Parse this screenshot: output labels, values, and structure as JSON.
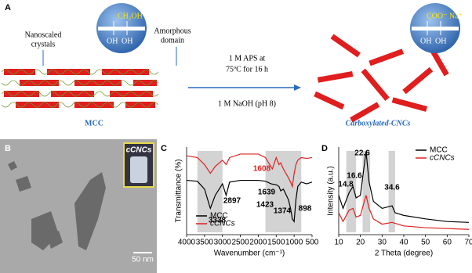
{
  "panel_a": {
    "label": "A",
    "left_circle": {
      "top": "CH₂OH",
      "bottom_left": "OH",
      "bottom_right": "OH"
    },
    "crystal_label": [
      "Nanoscaled",
      "crystals"
    ],
    "amorphous_label": [
      "Amorphous",
      "domain"
    ],
    "condition_top": [
      "1 M APS at",
      "75ºC for 16 h"
    ],
    "condition_bottom": "1 M NaOH (pH 8)",
    "left_name": "MCC",
    "right_circle": {
      "top": "COO⁻ Na⁺",
      "bottom_left": "OH",
      "bottom_right": "OH"
    },
    "right_name": "Carboxylated-CNCs"
  },
  "panel_b": {
    "label": "B",
    "inset_label": "cCNCs",
    "scale_bar": "50 nm"
  },
  "chart_data": [
    {
      "type": "line",
      "label": "C",
      "xlabel": "Wavenumber (cm⁻¹)",
      "ylabel": "Transmittance (%)",
      "xlim": [
        4000,
        500
      ],
      "xticks": [
        4000,
        3500,
        3000,
        2500,
        2000,
        1500,
        1000,
        500
      ],
      "ylim": [
        0,
        100
      ],
      "highlight_ranges": [
        [
          3700,
          3000
        ],
        [
          1800,
          800
        ]
      ],
      "annotations": [
        "3338",
        "2897",
        "1608",
        "1639",
        "1423",
        "1374",
        "898"
      ],
      "series": [
        {
          "name": "MCC",
          "color": "#000000",
          "x": [
            4000,
            3700,
            3500,
            3338,
            3200,
            3000,
            2897,
            2800,
            2500,
            2000,
            1800,
            1639,
            1500,
            1423,
            1374,
            1300,
            1160,
            1100,
            1050,
            1000,
            950,
            898,
            800,
            650,
            500
          ],
          "values": [
            62,
            61,
            52,
            30,
            45,
            58,
            45,
            60,
            62,
            62,
            61,
            58,
            57,
            55,
            50,
            52,
            40,
            30,
            18,
            15,
            40,
            55,
            60,
            58,
            60
          ]
        },
        {
          "name": "cCNCs",
          "color": "#e02020",
          "x": [
            4000,
            3700,
            3500,
            3338,
            3200,
            3000,
            2897,
            2800,
            2500,
            2000,
            1800,
            1608,
            1500,
            1423,
            1374,
            1300,
            1160,
            1100,
            1050,
            1000,
            950,
            898,
            800,
            650,
            500
          ],
          "values": [
            90,
            88,
            80,
            70,
            78,
            85,
            80,
            88,
            92,
            92,
            88,
            75,
            88,
            80,
            82,
            75,
            65,
            60,
            55,
            70,
            80,
            85,
            88,
            87,
            88
          ]
        }
      ]
    },
    {
      "type": "line",
      "label": "D",
      "xlabel": "2 Theta (degree)",
      "ylabel": "Intensity (a.u.)",
      "xlim": [
        10,
        70
      ],
      "xticks": [
        10,
        20,
        30,
        40,
        50,
        60,
        70
      ],
      "ylim": [
        0,
        100
      ],
      "highlight_ranges": [
        [
          13.5,
          18
        ],
        [
          21,
          24.5
        ],
        [
          33,
          36
        ]
      ],
      "annotations": [
        "14.8",
        "16.6",
        "22.6",
        "34.6"
      ],
      "series": [
        {
          "name": "MCC",
          "color": "#000000",
          "x": [
            10,
            12,
            14.8,
            16.6,
            18,
            20,
            22.6,
            24,
            26,
            30,
            34.6,
            36,
            40,
            50,
            60,
            70
          ],
          "values": [
            45,
            30,
            48,
            55,
            42,
            45,
            95,
            60,
            38,
            30,
            33,
            25,
            22,
            18,
            15,
            14
          ]
        },
        {
          "name": "cCNCs",
          "color": "#e02020",
          "x": [
            10,
            12,
            14.8,
            16.6,
            18,
            20,
            22.6,
            24,
            26,
            30,
            34.6,
            40,
            50,
            70
          ],
          "values": [
            25,
            15,
            28,
            30,
            20,
            22,
            45,
            30,
            18,
            12,
            14,
            10,
            8,
            6
          ]
        }
      ]
    }
  ]
}
